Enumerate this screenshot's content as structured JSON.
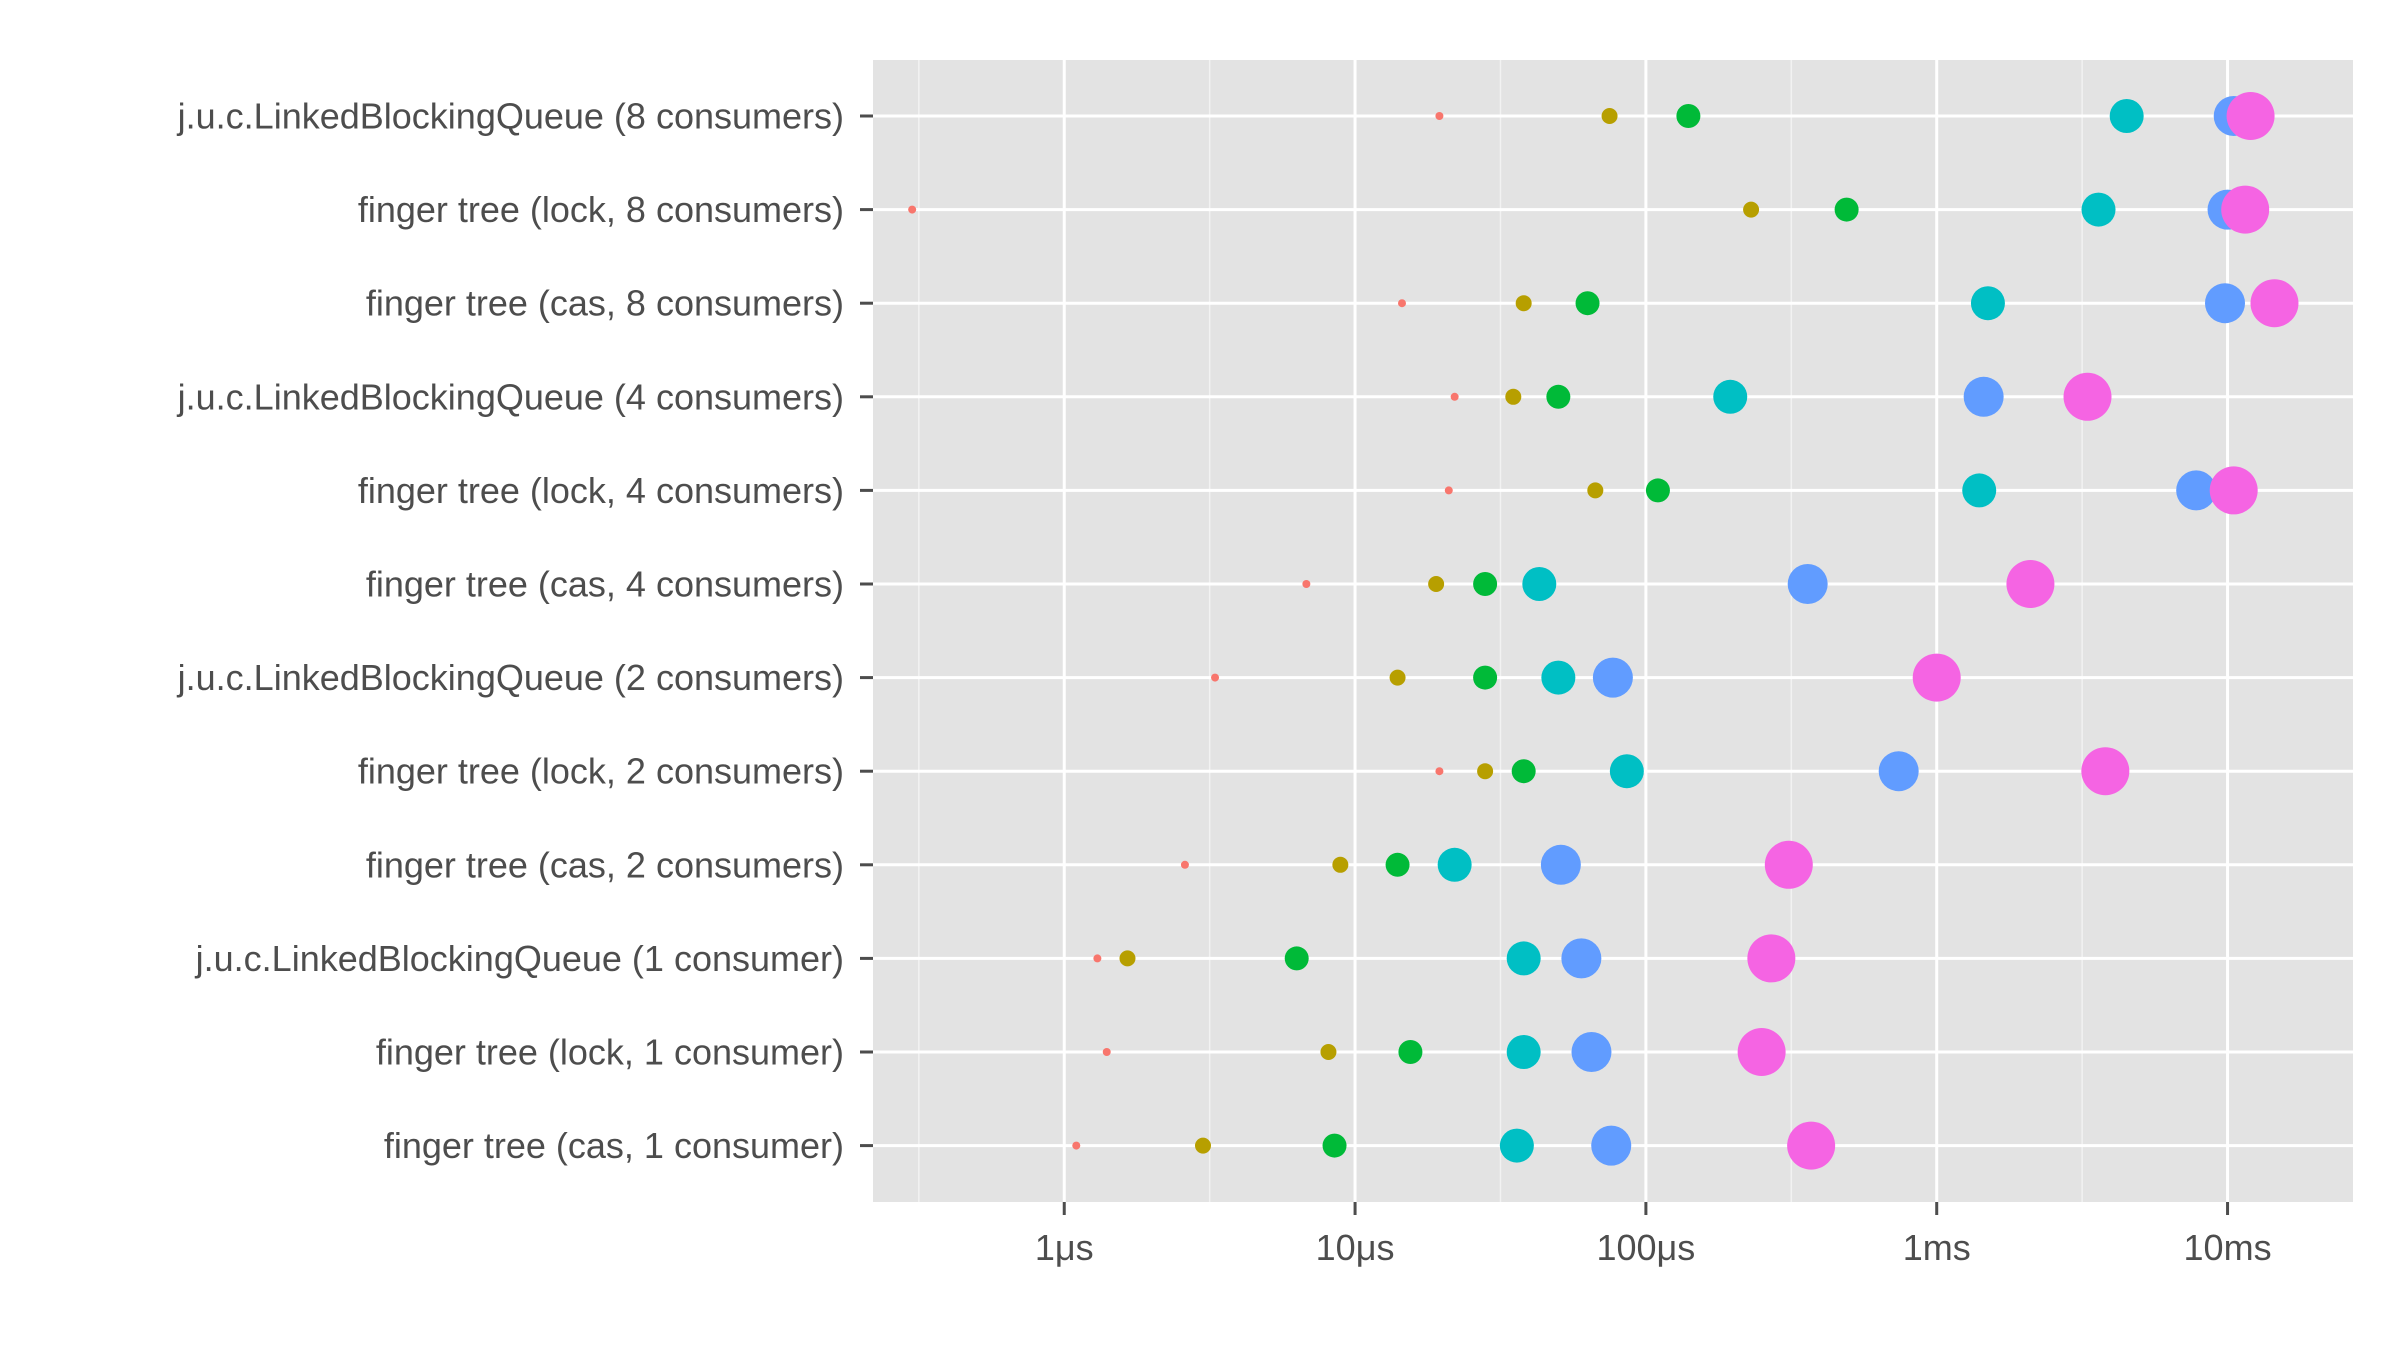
{
  "chart_data": {
    "type": "scatter",
    "title": "",
    "xlabel": "",
    "ylabel": "",
    "x_scale": "log",
    "x_unit": "seconds",
    "xlim": [
      2.2e-07,
      0.027
    ],
    "grid": true,
    "legend": "none",
    "x_ticks": [
      {
        "value": 1e-06,
        "label": "1μs"
      },
      {
        "value": 1e-05,
        "label": "10μs"
      },
      {
        "value": 0.0001,
        "label": "100μs"
      },
      {
        "value": 0.001,
        "label": "1ms"
      },
      {
        "value": 0.01,
        "label": "10ms"
      }
    ],
    "categories": [
      "j.u.c.LinkedBlockingQueue (8 consumers)",
      "finger tree (lock, 8 consumers)",
      "finger tree (cas, 8 consumers)",
      "j.u.c.LinkedBlockingQueue (4 consumers)",
      "finger tree (lock, 4 consumers)",
      "finger tree (cas, 4 consumers)",
      "j.u.c.LinkedBlockingQueue (2 consumers)",
      "finger tree (lock, 2 consumers)",
      "finger tree (cas, 2 consumers)",
      "j.u.c.LinkedBlockingQueue (1 consumer)",
      "finger tree (lock, 1 consumer)",
      "finger tree (cas, 1 consumer)"
    ],
    "series": [
      {
        "color": "#F8766D",
        "size_rank": 1,
        "values": [
          1.95e-05,
          3e-07,
          1.45e-05,
          2.2e-05,
          2.1e-05,
          6.8e-06,
          3.3e-06,
          1.95e-05,
          2.6e-06,
          1.3e-06,
          1.4e-06,
          1.1e-06
        ]
      },
      {
        "color": "#B79F00",
        "size_rank": 2,
        "values": [
          7.5e-05,
          0.00023,
          3.8e-05,
          3.5e-05,
          6.7e-05,
          1.9e-05,
          1.4e-05,
          2.8e-05,
          8.9e-06,
          1.65e-06,
          8.1e-06,
          3e-06
        ]
      },
      {
        "color": "#00BA38",
        "size_rank": 3,
        "values": [
          0.00014,
          0.00049,
          6.3e-05,
          5e-05,
          0.00011,
          2.8e-05,
          2.8e-05,
          3.8e-05,
          1.4e-05,
          6.3e-06,
          1.55e-05,
          8.5e-06
        ]
      },
      {
        "color": "#00BFC4",
        "size_rank": 4,
        "values": [
          0.0045,
          0.0036,
          0.0015,
          0.000195,
          0.0014,
          4.3e-05,
          5e-05,
          8.6e-05,
          2.2e-05,
          3.8e-05,
          3.8e-05,
          3.6e-05
        ]
      },
      {
        "color": "#619CFF",
        "size_rank": 5,
        "values": [
          0.0105,
          0.01,
          0.0098,
          0.00145,
          0.0078,
          0.00036,
          7.7e-05,
          0.00074,
          5.1e-05,
          6e-05,
          6.5e-05,
          7.6e-05
        ]
      },
      {
        "color": "#F564E3",
        "size_rank": 6,
        "values": [
          0.012,
          0.0115,
          0.0145,
          0.0033,
          0.0105,
          0.0021,
          0.001,
          0.0038,
          0.00031,
          0.00027,
          0.00025,
          0.00037
        ]
      }
    ]
  }
}
